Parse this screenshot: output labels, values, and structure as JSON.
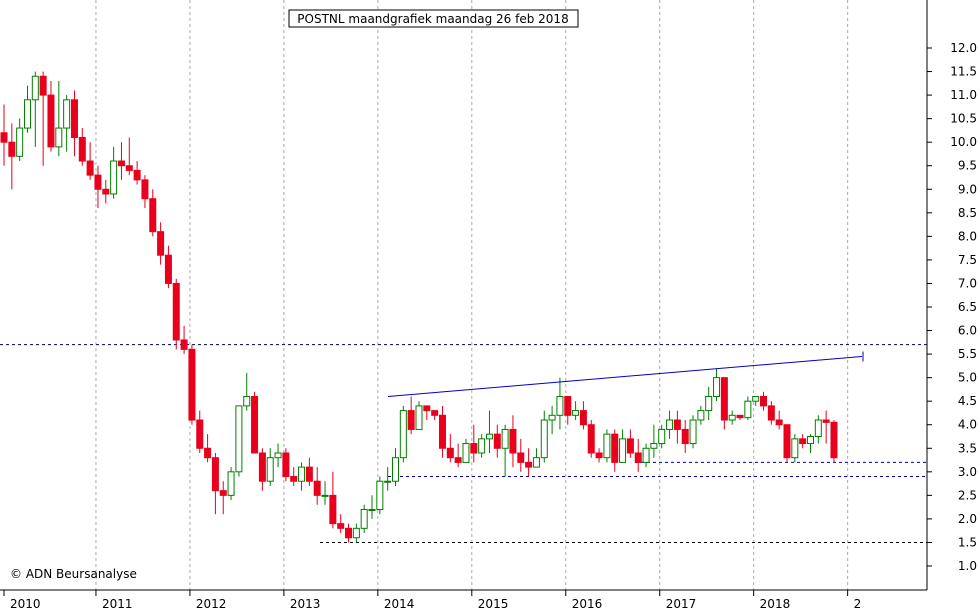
{
  "chart_data": {
    "type": "candlestick",
    "title": "POSTNL maandgrafiek maandag 26 feb 2018",
    "copyright": "© ADN Beursanalyse",
    "ylim": [
      0.5,
      12.4
    ],
    "y_ticks": [
      1.0,
      1.5,
      2.0,
      2.5,
      3.0,
      3.5,
      4.0,
      4.5,
      5.0,
      5.5,
      6.0,
      6.5,
      7.0,
      7.5,
      8.0,
      8.5,
      9.0,
      9.5,
      10.0,
      10.5,
      11.0,
      11.5,
      12.0
    ],
    "y_tick_labels": [
      "1.0",
      "1.5",
      "2.0",
      "2.5",
      "3.0",
      "3.5",
      "4.0",
      "4.5",
      "5.0",
      "5.5",
      "6.0",
      "6.5",
      "7.0",
      "7.5",
      "8.0",
      "8.5",
      "9.0",
      "9.5",
      "10.0",
      "10.5",
      "11.0",
      "11.5",
      "12.0"
    ],
    "x_labels": [
      "2010",
      "2011",
      "2012",
      "2013",
      "2014",
      "2015",
      "2016",
      "2017",
      "2018",
      "2"
    ],
    "colors": {
      "up": "#008000",
      "down": "#e8001c",
      "trendline": "#0000cc",
      "support": "#0000aa",
      "resistance": "#000066",
      "grid": "#aaaaaa"
    },
    "candles": [
      [
        10.2,
        10.8,
        9.5,
        10.0
      ],
      [
        10.0,
        10.4,
        9.0,
        9.7
      ],
      [
        9.7,
        10.5,
        9.6,
        10.3
      ],
      [
        10.3,
        11.2,
        10.2,
        10.9
      ],
      [
        10.9,
        11.5,
        9.9,
        11.4
      ],
      [
        11.4,
        11.5,
        9.5,
        11.0
      ],
      [
        11.0,
        11.3,
        9.8,
        9.9
      ],
      [
        9.9,
        11.3,
        9.7,
        10.3
      ],
      [
        10.3,
        11.0,
        9.8,
        10.9
      ],
      [
        10.9,
        11.1,
        9.7,
        10.1
      ],
      [
        10.1,
        10.3,
        9.5,
        9.6
      ],
      [
        9.6,
        10.0,
        9.2,
        9.3
      ],
      [
        9.3,
        9.5,
        8.6,
        9.0
      ],
      [
        9.0,
        9.2,
        8.7,
        8.9
      ],
      [
        8.9,
        9.9,
        8.8,
        9.6
      ],
      [
        9.6,
        10.0,
        9.2,
        9.5
      ],
      [
        9.5,
        10.1,
        9.3,
        9.4
      ],
      [
        9.4,
        9.6,
        9.1,
        9.2
      ],
      [
        9.2,
        9.3,
        8.6,
        8.8
      ],
      [
        8.8,
        9.0,
        8.0,
        8.1
      ],
      [
        8.1,
        8.3,
        7.4,
        7.6
      ],
      [
        7.6,
        7.8,
        6.9,
        7.0
      ],
      [
        7.0,
        7.1,
        5.6,
        5.8
      ],
      [
        5.8,
        6.1,
        5.5,
        5.6
      ],
      [
        5.6,
        5.7,
        4.0,
        4.1
      ],
      [
        4.1,
        4.3,
        3.4,
        3.5
      ],
      [
        3.5,
        3.8,
        3.2,
        3.3
      ],
      [
        3.3,
        3.4,
        2.1,
        2.6
      ],
      [
        2.6,
        2.8,
        2.1,
        2.5
      ],
      [
        2.5,
        3.1,
        2.4,
        3.0
      ],
      [
        3.0,
        4.4,
        2.9,
        4.4
      ],
      [
        4.4,
        5.1,
        4.3,
        4.6
      ],
      [
        4.6,
        4.7,
        3.4,
        3.4
      ],
      [
        3.4,
        3.5,
        2.6,
        2.8
      ],
      [
        2.8,
        3.5,
        2.7,
        3.3
      ],
      [
        3.3,
        3.6,
        3.1,
        3.4
      ],
      [
        3.4,
        3.5,
        2.8,
        2.9
      ],
      [
        2.9,
        3.1,
        2.7,
        2.8
      ],
      [
        2.8,
        3.2,
        2.6,
        3.1
      ],
      [
        3.1,
        3.3,
        2.7,
        2.8
      ],
      [
        2.8,
        3.1,
        2.3,
        2.5
      ],
      [
        2.5,
        2.8,
        2.3,
        2.5
      ],
      [
        2.5,
        3.0,
        1.8,
        1.9
      ],
      [
        1.9,
        2.1,
        1.7,
        1.8
      ],
      [
        1.8,
        1.9,
        1.5,
        1.6
      ],
      [
        1.6,
        1.9,
        1.5,
        1.8
      ],
      [
        1.8,
        2.3,
        1.7,
        2.2
      ],
      [
        2.2,
        2.5,
        2.0,
        2.2
      ],
      [
        2.2,
        2.9,
        2.1,
        2.8
      ],
      [
        2.8,
        3.1,
        2.6,
        2.8
      ],
      [
        2.8,
        3.5,
        2.7,
        3.3
      ],
      [
        3.3,
        4.4,
        3.2,
        4.3
      ],
      [
        4.3,
        4.6,
        3.8,
        3.9
      ],
      [
        3.9,
        4.5,
        3.9,
        4.4
      ],
      [
        4.4,
        4.4,
        4.1,
        4.3
      ],
      [
        4.3,
        4.3,
        4.1,
        4.2
      ],
      [
        4.2,
        4.4,
        3.3,
        3.5
      ],
      [
        3.5,
        3.8,
        3.2,
        3.3
      ],
      [
        3.3,
        3.6,
        3.1,
        3.2
      ],
      [
        3.2,
        3.7,
        3.2,
        3.6
      ],
      [
        3.6,
        4.0,
        3.2,
        3.4
      ],
      [
        3.4,
        3.8,
        3.3,
        3.7
      ],
      [
        3.7,
        4.3,
        3.4,
        3.8
      ],
      [
        3.8,
        4.0,
        3.3,
        3.5
      ],
      [
        3.5,
        4.0,
        2.9,
        3.9
      ],
      [
        3.9,
        4.2,
        3.1,
        3.4
      ],
      [
        3.4,
        3.7,
        3.0,
        3.2
      ],
      [
        3.2,
        3.5,
        2.9,
        3.1
      ],
      [
        3.1,
        3.5,
        3.1,
        3.3
      ],
      [
        3.3,
        4.3,
        3.2,
        4.1
      ],
      [
        4.1,
        4.4,
        3.8,
        4.2
      ],
      [
        4.2,
        5.0,
        3.9,
        4.6
      ],
      [
        4.6,
        4.6,
        4.0,
        4.2
      ],
      [
        4.2,
        4.5,
        4.1,
        4.3
      ],
      [
        4.3,
        4.5,
        3.9,
        4.0
      ],
      [
        4.0,
        4.1,
        3.3,
        3.4
      ],
      [
        3.4,
        3.5,
        3.2,
        3.3
      ],
      [
        3.3,
        3.9,
        3.2,
        3.8
      ],
      [
        3.8,
        3.9,
        3.0,
        3.2
      ],
      [
        3.2,
        3.9,
        3.2,
        3.7
      ],
      [
        3.7,
        3.9,
        3.3,
        3.4
      ],
      [
        3.4,
        3.7,
        3.0,
        3.2
      ],
      [
        3.2,
        3.6,
        3.1,
        3.5
      ],
      [
        3.5,
        4.0,
        3.3,
        3.6
      ],
      [
        3.6,
        4.0,
        3.5,
        3.9
      ],
      [
        3.9,
        4.3,
        3.7,
        4.1
      ],
      [
        4.1,
        4.3,
        3.6,
        3.9
      ],
      [
        3.9,
        4.1,
        3.4,
        3.6
      ],
      [
        3.6,
        4.2,
        3.5,
        4.1
      ],
      [
        4.1,
        4.4,
        4.0,
        4.3
      ],
      [
        4.3,
        4.8,
        4.1,
        4.6
      ],
      [
        4.6,
        5.2,
        4.5,
        5.0
      ],
      [
        5.0,
        5.0,
        3.9,
        4.1
      ],
      [
        4.1,
        4.3,
        4.0,
        4.2
      ],
      [
        4.2,
        4.2,
        4.1,
        4.15
      ],
      [
        4.15,
        4.6,
        4.1,
        4.5
      ],
      [
        4.5,
        4.6,
        4.4,
        4.6
      ],
      [
        4.6,
        4.7,
        4.3,
        4.4
      ],
      [
        4.4,
        4.5,
        4.0,
        4.1
      ],
      [
        4.1,
        4.3,
        3.9,
        4.0
      ],
      [
        4.0,
        4.0,
        3.2,
        3.3
      ],
      [
        3.3,
        3.8,
        3.2,
        3.7
      ],
      [
        3.7,
        3.8,
        3.5,
        3.6
      ],
      [
        3.6,
        3.8,
        3.4,
        3.75
      ],
      [
        3.75,
        4.2,
        3.6,
        4.1
      ],
      [
        4.1,
        4.3,
        3.6,
        4.05
      ],
      [
        4.05,
        4.1,
        3.2,
        3.3
      ]
    ],
    "trendline": {
      "x": [
        0,
        0
      ],
      "y": [
        4.6,
        5.45
      ]
    },
    "support_lines": [
      {
        "y": 3.2
      },
      {
        "y": 2.9
      },
      {
        "y": 1.5
      }
    ],
    "resistance_line": {
      "y": 5.7
    }
  }
}
